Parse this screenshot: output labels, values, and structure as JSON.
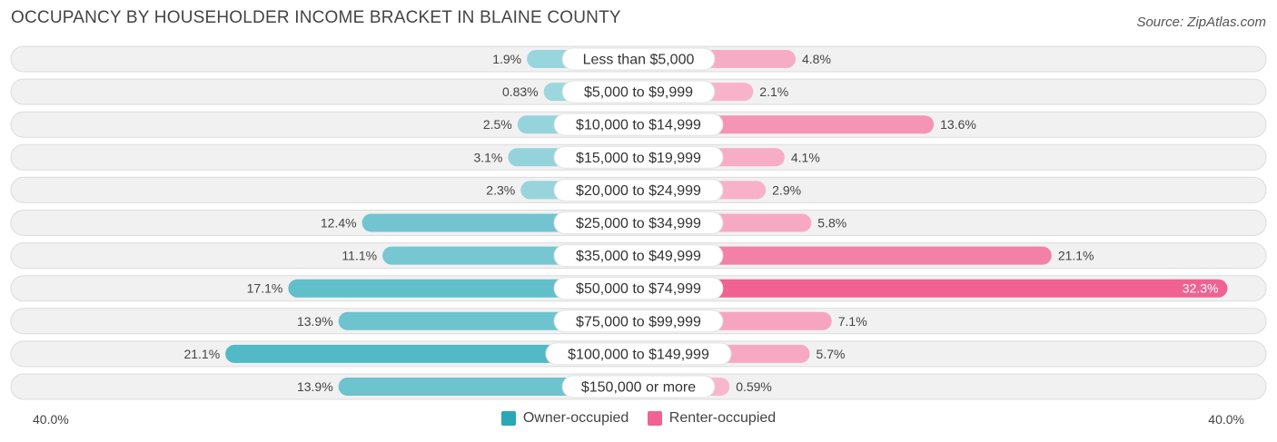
{
  "header": {
    "title": "OCCUPANCY BY HOUSEHOLDER INCOME BRACKET IN BLAINE COUNTY",
    "source": "Source: ZipAtlas.com"
  },
  "axis": {
    "left_label": "40.0%",
    "right_label": "40.0%"
  },
  "legend": {
    "owner": "Owner-occupied",
    "renter": "Renter-occupied"
  },
  "colors": {
    "owner": "#2aa8b8",
    "renter": "#f06292",
    "row_bg": "#f1f1f1"
  },
  "chart_data": {
    "type": "bar",
    "orientation": "diverging-horizontal",
    "title": "OCCUPANCY BY HOUSEHOLDER INCOME BRACKET IN BLAINE COUNTY",
    "xlim": [
      -40,
      40
    ],
    "categories": [
      "Less than $5,000",
      "$5,000 to $9,999",
      "$10,000 to $14,999",
      "$15,000 to $19,999",
      "$20,000 to $24,999",
      "$25,000 to $34,999",
      "$35,000 to $49,999",
      "$50,000 to $74,999",
      "$75,000 to $99,999",
      "$100,000 to $149,999",
      "$150,000 or more"
    ],
    "series": [
      {
        "name": "Owner-occupied",
        "values": [
          1.9,
          0.83,
          2.5,
          3.1,
          2.3,
          12.4,
          11.1,
          17.1,
          13.9,
          21.1,
          13.9
        ],
        "labels": [
          "1.9%",
          "0.83%",
          "2.5%",
          "3.1%",
          "2.3%",
          "12.4%",
          "11.1%",
          "17.1%",
          "13.9%",
          "21.1%",
          "13.9%"
        ]
      },
      {
        "name": "Renter-occupied",
        "values": [
          4.8,
          2.1,
          13.6,
          4.1,
          2.9,
          5.8,
          21.1,
          32.3,
          7.1,
          5.7,
          0.59
        ],
        "labels": [
          "4.8%",
          "2.1%",
          "13.6%",
          "4.1%",
          "2.9%",
          "5.8%",
          "21.1%",
          "32.3%",
          "7.1%",
          "5.7%",
          "0.59%"
        ]
      }
    ]
  }
}
